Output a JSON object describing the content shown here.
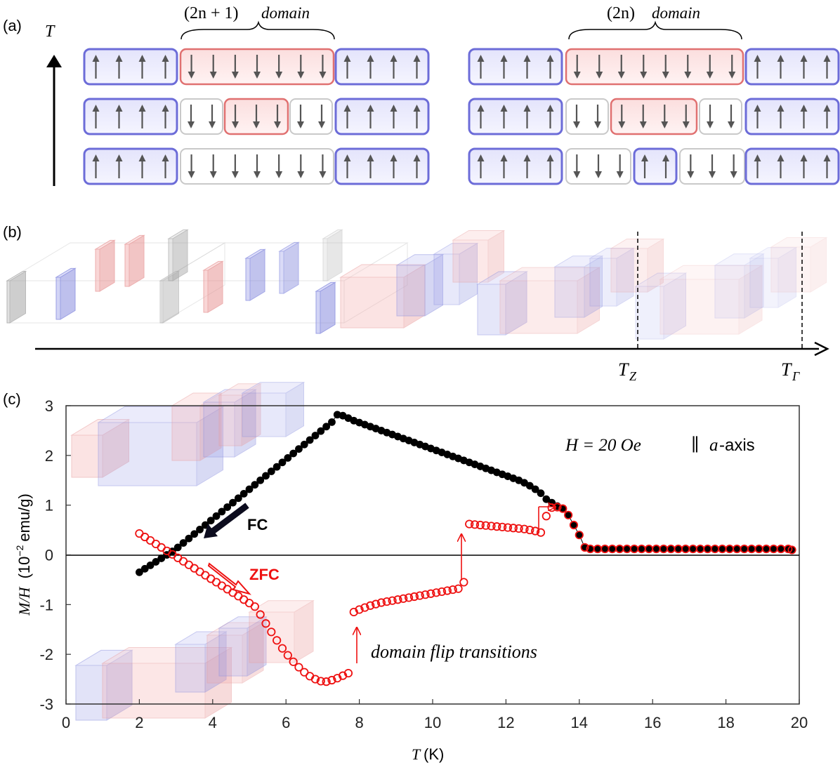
{
  "panels": {
    "a": {
      "label": "(a)",
      "axis_label": "T",
      "odd_title_main": "(2n + 1)",
      "odd_title_suffix": "domain",
      "even_title_main": "(2n)",
      "even_title_suffix": "domain"
    },
    "b": {
      "label": "(b)",
      "tz_label": "T",
      "tz_sub": "Z",
      "tg_label": "T",
      "tg_sub": "Γ"
    },
    "c": {
      "label": "(c)"
    }
  },
  "colors": {
    "blue": "#6c6cd8",
    "red": "#e07070",
    "fc": "#000000",
    "zfc": "#ee1111"
  },
  "chart_data": {
    "type": "scatter",
    "xlabel": "T",
    "xlabel_unit": "(K)",
    "ylabel_main": "M/H",
    "ylabel_unit_open": "(10",
    "ylabel_unit_exp": "−2",
    "ylabel_unit_close": "emu/g)",
    "xlim": [
      0,
      20
    ],
    "ylim": [
      -3,
      3
    ],
    "xticks": [
      0,
      2,
      4,
      6,
      8,
      10,
      12,
      14,
      16,
      18,
      20
    ],
    "yticks": [
      -3,
      -2,
      -1,
      0,
      1,
      2,
      3
    ],
    "field_label": "H = 20 Oe",
    "axis_note_sym": "∥",
    "axis_note_var": "a",
    "axis_note_suffix": "-axis",
    "fc_label": "FC",
    "zfc_label": "ZFC",
    "annotation": "domain flip transitions",
    "series": [
      {
        "name": "FC",
        "x": [
          2.0,
          2.15,
          2.3,
          2.45,
          2.6,
          2.75,
          2.9,
          3.05,
          3.2,
          3.35,
          3.5,
          3.65,
          3.8,
          3.95,
          4.1,
          4.25,
          4.4,
          4.55,
          4.7,
          4.85,
          5.0,
          5.15,
          5.3,
          5.45,
          5.6,
          5.75,
          5.9,
          6.05,
          6.2,
          6.35,
          6.5,
          6.65,
          6.8,
          6.95,
          7.1,
          7.25,
          7.4,
          7.55,
          7.7,
          7.85,
          8.0,
          8.15,
          8.3,
          8.45,
          8.6,
          8.75,
          8.9,
          9.05,
          9.2,
          9.35,
          9.5,
          9.65,
          9.8,
          9.95,
          10.1,
          10.25,
          10.4,
          10.55,
          10.7,
          10.85,
          11.0,
          11.15,
          11.3,
          11.45,
          11.6,
          11.75,
          11.9,
          12.05,
          12.2,
          12.35,
          12.5,
          12.65,
          12.8,
          12.95,
          13.1,
          13.25,
          13.4,
          13.55,
          13.7,
          13.85,
          14.0,
          14.15,
          14.3,
          14.5,
          14.7,
          14.9,
          15.1,
          15.3,
          15.5,
          15.7,
          15.9,
          16.1,
          16.3,
          16.5,
          16.7,
          16.9,
          17.1,
          17.3,
          17.5,
          17.7,
          17.9,
          18.1,
          18.3,
          18.5,
          18.7,
          18.9,
          19.1,
          19.3,
          19.5,
          19.7,
          19.8
        ],
        "y": [
          -0.35,
          -0.28,
          -0.21,
          -0.14,
          -0.07,
          0.0,
          0.07,
          0.15,
          0.24,
          0.33,
          0.42,
          0.51,
          0.6,
          0.69,
          0.78,
          0.87,
          0.96,
          1.05,
          1.14,
          1.23,
          1.32,
          1.41,
          1.5,
          1.59,
          1.68,
          1.77,
          1.86,
          1.95,
          2.04,
          2.13,
          2.22,
          2.31,
          2.4,
          2.49,
          2.58,
          2.67,
          2.82,
          2.8,
          2.75,
          2.7,
          2.66,
          2.62,
          2.58,
          2.54,
          2.5,
          2.46,
          2.42,
          2.38,
          2.34,
          2.3,
          2.26,
          2.22,
          2.18,
          2.14,
          2.1,
          2.06,
          2.02,
          1.98,
          1.94,
          1.9,
          1.86,
          1.82,
          1.78,
          1.74,
          1.7,
          1.66,
          1.62,
          1.58,
          1.54,
          1.5,
          1.45,
          1.39,
          1.32,
          1.24,
          1.12,
          1.05,
          0.98,
          0.93,
          0.8,
          0.6,
          0.4,
          0.15,
          0.12,
          0.12,
          0.12,
          0.12,
          0.12,
          0.12,
          0.12,
          0.12,
          0.12,
          0.12,
          0.12,
          0.12,
          0.12,
          0.12,
          0.12,
          0.12,
          0.12,
          0.12,
          0.12,
          0.12,
          0.12,
          0.12,
          0.12,
          0.12,
          0.12,
          0.12,
          0.12,
          0.12,
          0.1
        ]
      },
      {
        "name": "ZFC",
        "x": [
          2.0,
          2.15,
          2.3,
          2.45,
          2.6,
          2.75,
          2.9,
          3.05,
          3.2,
          3.35,
          3.5,
          3.65,
          3.8,
          3.95,
          4.1,
          4.25,
          4.4,
          4.55,
          4.7,
          4.85,
          5.0,
          5.15,
          5.3,
          5.45,
          5.6,
          5.75,
          5.9,
          6.05,
          6.2,
          6.35,
          6.5,
          6.65,
          6.8,
          6.95,
          7.1,
          7.25,
          7.4,
          7.55,
          7.7,
          7.85,
          8.0,
          8.15,
          8.3,
          8.45,
          8.6,
          8.75,
          8.9,
          9.05,
          9.2,
          9.35,
          9.5,
          9.65,
          9.8,
          9.95,
          10.1,
          10.25,
          10.4,
          10.55,
          10.7,
          10.85,
          11.0,
          11.15,
          11.3,
          11.45,
          11.6,
          11.75,
          11.9,
          12.05,
          12.2,
          12.35,
          12.5,
          12.65,
          12.8,
          12.95,
          13.1,
          13.25,
          13.4,
          13.55,
          13.7,
          13.85,
          14.0,
          14.15,
          14.3,
          14.5,
          14.7,
          14.9,
          15.1,
          15.3,
          15.5,
          15.7,
          15.9,
          16.1,
          16.3,
          16.5,
          16.7,
          16.9,
          17.1,
          17.3,
          17.5,
          17.7,
          17.9,
          18.1,
          18.3,
          18.5,
          18.7,
          18.9,
          19.1,
          19.3,
          19.5,
          19.7,
          19.8
        ],
        "y": [
          0.43,
          0.36,
          0.29,
          0.22,
          0.15,
          0.08,
          0.01,
          -0.06,
          -0.13,
          -0.2,
          -0.27,
          -0.34,
          -0.41,
          -0.48,
          -0.55,
          -0.62,
          -0.69,
          -0.76,
          -0.83,
          -0.9,
          -0.97,
          -1.04,
          -1.2,
          -1.38,
          -1.55,
          -1.72,
          -1.88,
          -2.02,
          -2.15,
          -2.26,
          -2.36,
          -2.44,
          -2.5,
          -2.54,
          -2.55,
          -2.52,
          -2.48,
          -2.43,
          -2.38,
          -1.15,
          -1.1,
          -1.06,
          -1.02,
          -0.99,
          -0.96,
          -0.94,
          -0.92,
          -0.9,
          -0.88,
          -0.86,
          -0.84,
          -0.82,
          -0.8,
          -0.78,
          -0.76,
          -0.74,
          -0.72,
          -0.7,
          -0.68,
          -0.55,
          0.62,
          0.61,
          0.6,
          0.59,
          0.58,
          0.57,
          0.56,
          0.55,
          0.54,
          0.53,
          0.52,
          0.5,
          0.48,
          0.45,
          0.78,
          0.95,
          0.96,
          0.93,
          0.8,
          0.6,
          0.4,
          0.15,
          0.12,
          0.12,
          0.12,
          0.12,
          0.12,
          0.12,
          0.12,
          0.12,
          0.12,
          0.12,
          0.12,
          0.12,
          0.12,
          0.12,
          0.12,
          0.12,
          0.12,
          0.12,
          0.12,
          0.12,
          0.12,
          0.12,
          0.12,
          0.12,
          0.12,
          0.12,
          0.12,
          0.12,
          0.1
        ]
      }
    ]
  }
}
